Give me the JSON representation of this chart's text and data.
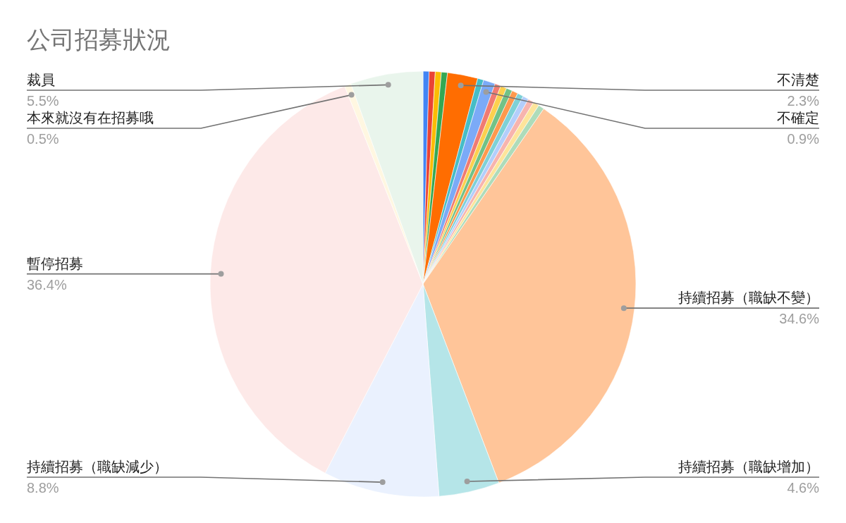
{
  "chart_data": {
    "type": "pie",
    "title": "公司招募狀況",
    "categories": [
      null,
      null,
      null,
      null,
      "不清楚",
      null,
      "不確定",
      null,
      null,
      null,
      null,
      null,
      null,
      null,
      null,
      null,
      "持續招募（職缺不變）",
      "持續招募（職缺增加）",
      "持續招募（職缺減少）",
      "暫停招募",
      "本來就沒有在招募哦",
      "裁員"
    ],
    "values": [
      0.46,
      0.46,
      0.46,
      0.46,
      2.3,
      0.46,
      0.9,
      0.46,
      0.46,
      0.46,
      0.46,
      0.46,
      0.45,
      0.45,
      0.45,
      0.45,
      34.6,
      4.6,
      8.8,
      36.4,
      0.5,
      5.5
    ],
    "value_labels": [
      null,
      null,
      null,
      null,
      "2.3%",
      null,
      "0.9%",
      null,
      null,
      null,
      null,
      null,
      null,
      null,
      null,
      null,
      "34.6%",
      "4.6%",
      "8.8%",
      "36.4%",
      "0.5%",
      "5.5%"
    ],
    "colors": [
      "#4285f4",
      "#ea4335",
      "#fbbc04",
      "#34a853",
      "#ff6d01",
      "#46bdc6",
      "#7baaf7",
      "#f07b72",
      "#fcd04f",
      "#71c287",
      "#ff994d",
      "#7ed1d7",
      "#b3cefb",
      "#f7b4ae",
      "#fde49b",
      "#aedcba",
      "#ffc599",
      "#b5e5e8",
      "#eaf1fe",
      "#fde9e8",
      "#fff7e1",
      "#e9f5ec"
    ]
  }
}
